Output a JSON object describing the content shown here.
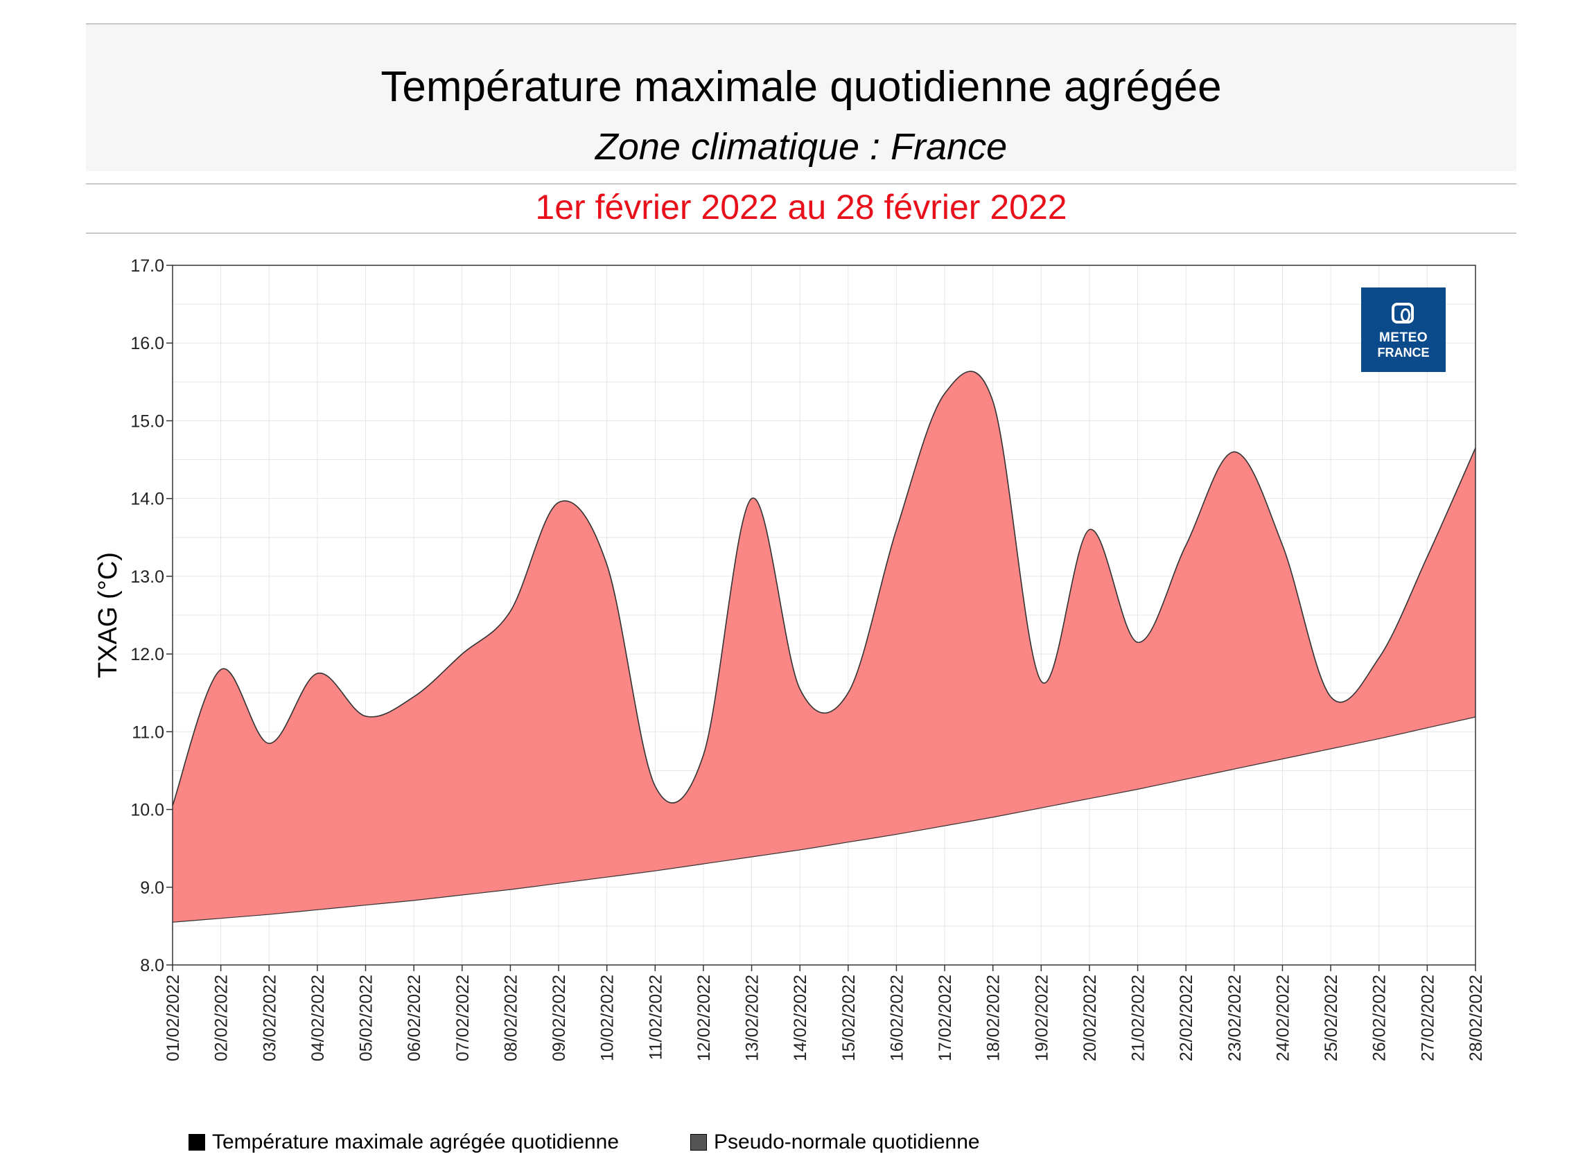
{
  "header": {
    "title": "Température maximale quotidienne agrégée",
    "subtitle": "Zone climatique : France",
    "period": "1er février 2022 au 28 février 2022"
  },
  "logo": {
    "line1": "METEO",
    "line2": "FRANCE",
    "color": "#0b4b8c"
  },
  "legend": {
    "items": [
      {
        "label": "Température maximale agrégée quotidienne",
        "color": "#000000"
      },
      {
        "label": "Pseudo-normale quotidienne",
        "color": "#555555"
      }
    ]
  },
  "chart_data": {
    "type": "area",
    "ylabel": "TXAG (°C)",
    "xlabel": "",
    "ylim": [
      8.0,
      17.0
    ],
    "yticks": [
      "8.0",
      "9.0",
      "10.0",
      "11.0",
      "12.0",
      "13.0",
      "14.0",
      "15.0",
      "16.0",
      "17.0"
    ],
    "grid": true,
    "fill_color": "#fa8686",
    "categories": [
      "01/02/2022",
      "02/02/2022",
      "03/02/2022",
      "04/02/2022",
      "05/02/2022",
      "06/02/2022",
      "07/02/2022",
      "08/02/2022",
      "09/02/2022",
      "10/02/2022",
      "11/02/2022",
      "12/02/2022",
      "13/02/2022",
      "14/02/2022",
      "15/02/2022",
      "16/02/2022",
      "17/02/2022",
      "18/02/2022",
      "19/02/2022",
      "20/02/2022",
      "21/02/2022",
      "22/02/2022",
      "23/02/2022",
      "24/02/2022",
      "25/02/2022",
      "26/02/2022",
      "27/02/2022",
      "28/02/2022"
    ],
    "series": [
      {
        "name": "Température maximale agrégée quotidienne",
        "values": [
          10.05,
          11.8,
          10.85,
          11.75,
          11.2,
          11.45,
          12.0,
          12.55,
          13.95,
          13.15,
          10.3,
          10.7,
          14.0,
          11.55,
          11.5,
          13.6,
          15.35,
          15.25,
          11.65,
          13.6,
          12.15,
          13.4,
          14.6,
          13.4,
          11.45,
          11.95,
          13.25,
          14.65
        ]
      },
      {
        "name": "Pseudo-normale quotidienne",
        "values": [
          8.55,
          8.6,
          8.65,
          8.71,
          8.77,
          8.83,
          8.9,
          8.97,
          9.05,
          9.13,
          9.21,
          9.3,
          9.39,
          9.48,
          9.58,
          9.68,
          9.79,
          9.9,
          10.02,
          10.14,
          10.26,
          10.39,
          10.52,
          10.65,
          10.78,
          10.91,
          11.05,
          11.19
        ]
      }
    ]
  }
}
